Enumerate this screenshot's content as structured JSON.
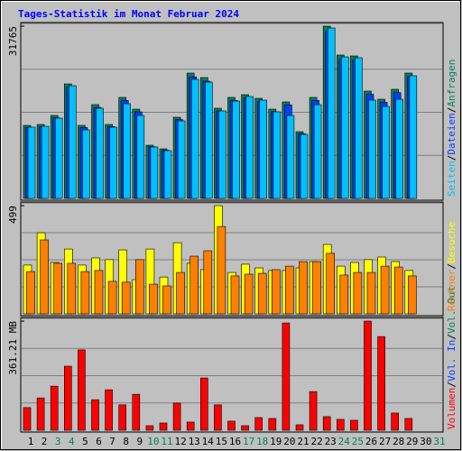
{
  "chart_data": [
    {
      "type": "bar",
      "title": "Tages-Statistik im Monat Februar 2024",
      "title_color": "#0000ff",
      "ylim": [
        0,
        31765
      ],
      "yticks": [
        31765
      ],
      "series": [
        {
          "name": "Anfragen",
          "color": "#00805c",
          "values": [
            13470,
            13637,
            15300,
            21120,
            13470,
            17295,
            13637,
            18626,
            16464,
            9812,
            9147,
            14967,
            23116,
            22284,
            16630,
            18626,
            19125,
            18459,
            16464,
            17794,
            12306,
            18626,
            31765,
            26442,
            26275,
            19790,
            18293,
            20122,
            23116,
            null,
            null
          ]
        },
        {
          "name": "Dateien",
          "color": "#0040ff",
          "values": [
            13070,
            13230,
            14840,
            20490,
            13070,
            16780,
            13230,
            18070,
            15970,
            9520,
            8870,
            14520,
            22420,
            21620,
            16130,
            18070,
            18550,
            17910,
            15970,
            17260,
            11940,
            18070,
            30810,
            25650,
            25490,
            19200,
            17740,
            19520,
            22420,
            null,
            null
          ]
        },
        {
          "name": "Seiten",
          "color": "#00c0ff",
          "values": [
            13138,
            13304,
            14801,
            20788,
            12639,
            16630,
            13138,
            17462,
            15300,
            9479,
            8814,
            14302,
            21952,
            21453,
            16131,
            17960,
            18792,
            18127,
            15965,
            15300,
            11807,
            17295,
            31432,
            26109,
            25943,
            18127,
            16963,
            18293,
            22617,
            null,
            null
          ]
        }
      ]
    },
    {
      "type": "bar",
      "ylim": [
        0,
        499
      ],
      "yticks": [
        499
      ],
      "series": [
        {
          "name": "Besuche",
          "color": "#ffff00",
          "values": [
            225,
            374,
            237,
            299,
            225,
            258,
            250,
            295,
            158,
            299,
            170,
            328,
            233,
            204,
            499,
            191,
            229,
            212,
            200,
            200,
            212,
            241,
            320,
            220,
            237,
            250,
            262,
            241,
            200,
            null,
            null
          ]
        },
        {
          "name": "Rechner",
          "color": "#ff8000",
          "values": [
            195,
            341,
            233,
            233,
            195,
            200,
            150,
            146,
            250,
            137,
            129,
            191,
            266,
            291,
            403,
            175,
            183,
            187,
            204,
            220,
            241,
            241,
            279,
            179,
            191,
            191,
            220,
            216,
            175,
            null,
            null
          ]
        }
      ]
    },
    {
      "type": "bar",
      "ylim": [
        0,
        361.21
      ],
      "yticks": [
        {
          "value": 361.21,
          "label": "361.21 MB"
        }
      ],
      "categories": [
        "1",
        "2",
        "3",
        "4",
        "5",
        "6",
        "7",
        "8",
        "9",
        "10",
        "11",
        "12",
        "13",
        "14",
        "15",
        "16",
        "17",
        "18",
        "19",
        "20",
        "21",
        "22",
        "23",
        "24",
        "25",
        "26",
        "27",
        "28",
        "29",
        "30",
        "31"
      ],
      "category_colors": [
        "#000000",
        "#000000",
        "#00805c",
        "#00805c",
        "#000000",
        "#000000",
        "#000000",
        "#000000",
        "#000000",
        "#00805c",
        "#00805c",
        "#000000",
        "#000000",
        "#000000",
        "#000000",
        "#000000",
        "#00805c",
        "#00805c",
        "#000000",
        "#000000",
        "#000000",
        "#000000",
        "#000000",
        "#00805c",
        "#00805c",
        "#000000",
        "#000000",
        "#000000",
        "#000000",
        "#000000",
        "#00805c"
      ],
      "legend_separator": "/",
      "legend": [
        {
          "name": "Vol. In",
          "color": "#0040ff"
        },
        {
          "name": "Vol. Out",
          "color": "#00805c"
        }
      ],
      "series": [
        {
          "name": "Volumen",
          "color": "#ff0000",
          "values": [
            75,
            107,
            146,
            212,
            266,
            101,
            134,
            84,
            119,
            15,
            24,
            90,
            27,
            173,
            84,
            30,
            15,
            42,
            39,
            355,
            18,
            128,
            45,
            36,
            33,
            361.21,
            310,
            57,
            39,
            null,
            null
          ]
        }
      ]
    }
  ]
}
